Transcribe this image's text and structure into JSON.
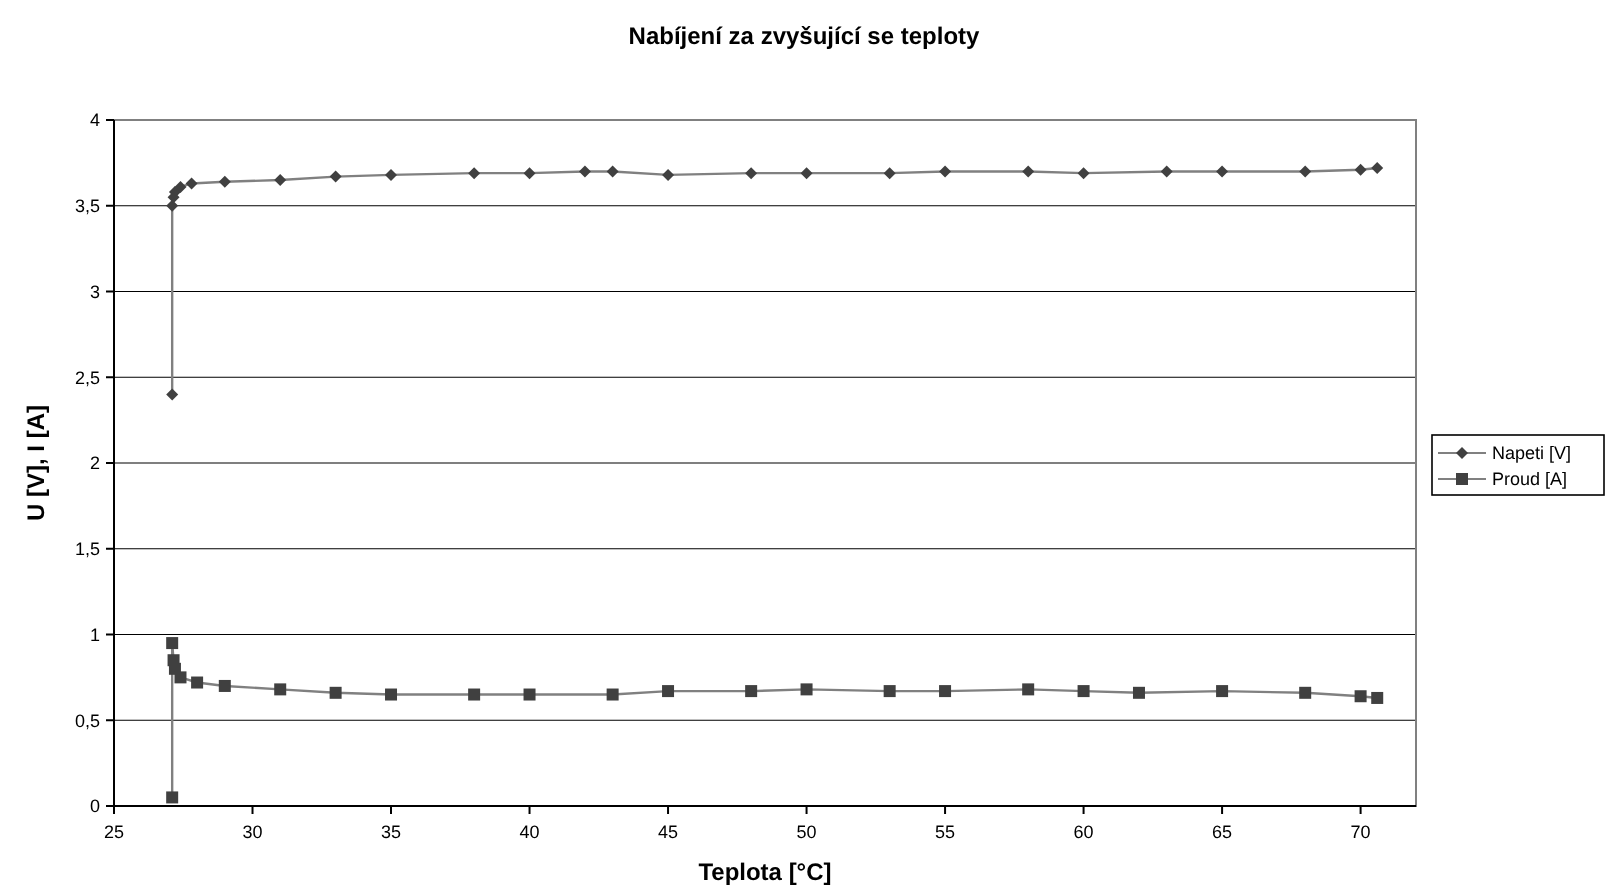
{
  "chart_data": {
    "type": "line",
    "title": "Nabíjení za zvyšující se teploty",
    "xlabel": "Teplota [°C]",
    "ylabel": "U [V], I [A]",
    "xlim": [
      25,
      72
    ],
    "xticks": [
      25,
      30,
      35,
      40,
      45,
      50,
      55,
      60,
      65,
      70
    ],
    "ylim": [
      0,
      4
    ],
    "yticks": [
      0,
      {
        "value": 0.5,
        "label": "0,5"
      },
      1,
      {
        "value": 1.5,
        "label": "1,5"
      },
      2,
      {
        "value": 2.5,
        "label": "2,5"
      },
      3,
      {
        "value": 3.5,
        "label": "3,5"
      },
      4
    ],
    "grid": "y",
    "legend": "right",
    "series": [
      {
        "name": "Napeti [V]",
        "color": "#404040",
        "marker": "diamond",
        "x": [
          27.1,
          27.1,
          27.15,
          27.2,
          27.4,
          27.8,
          29,
          31,
          33,
          35,
          38,
          40,
          42,
          43,
          45,
          48,
          50,
          53,
          55,
          58,
          60,
          63,
          65,
          68,
          70,
          70.6
        ],
        "values": [
          2.4,
          3.5,
          3.55,
          3.58,
          3.61,
          3.63,
          3.64,
          3.65,
          3.67,
          3.68,
          3.69,
          3.69,
          3.7,
          3.7,
          3.68,
          3.69,
          3.69,
          3.69,
          3.7,
          3.7,
          3.69,
          3.7,
          3.7,
          3.7,
          3.71,
          3.72
        ]
      },
      {
        "name": "Proud [A]",
        "color": "#404040",
        "marker": "square",
        "x": [
          27.1,
          27.1,
          27.15,
          27.2,
          27.4,
          28,
          29,
          31,
          33,
          35,
          38,
          40,
          43,
          45,
          48,
          50,
          53,
          55,
          58,
          60,
          62,
          65,
          68,
          70,
          70.6
        ],
        "values": [
          0.05,
          0.95,
          0.85,
          0.8,
          0.75,
          0.72,
          0.7,
          0.68,
          0.66,
          0.65,
          0.65,
          0.65,
          0.65,
          0.67,
          0.67,
          0.68,
          0.67,
          0.67,
          0.68,
          0.67,
          0.66,
          0.67,
          0.66,
          0.64,
          0.63
        ]
      }
    ]
  }
}
